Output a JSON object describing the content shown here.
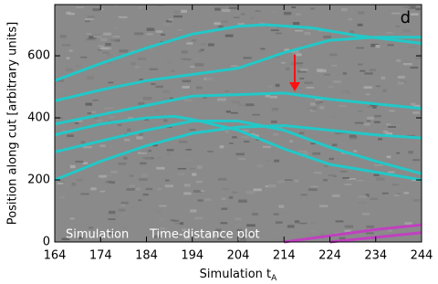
{
  "chart_data": {
    "type": "line",
    "title": "d",
    "annotations": [
      "Simulation",
      "Time-distance plot"
    ],
    "x_label": "Simulation t",
    "x_label_subscript": "A",
    "y_label": "Position along cut [arbitrary units]",
    "xlim": [
      164,
      244
    ],
    "xticks": [
      164,
      174,
      184,
      194,
      204,
      214,
      224,
      234,
      244
    ],
    "ylim": [
      0,
      765
    ],
    "yticks": [
      0,
      200,
      400,
      600
    ],
    "background": "#8a8a8a",
    "series": [
      {
        "color": "#22c8c8",
        "x": [
          164,
          174,
          184,
          194,
          204,
          210,
          220,
          230,
          244
        ],
        "values": [
          520,
          575,
          625,
          670,
          695,
          700,
          690,
          665,
          640
        ]
      },
      {
        "color": "#22c8c8",
        "x": [
          164,
          174,
          184,
          194,
          204,
          214,
          224,
          234,
          244
        ],
        "values": [
          455,
          490,
          520,
          540,
          560,
          610,
          650,
          660,
          660
        ]
      },
      {
        "color": "#22c8c8",
        "x": [
          164,
          174,
          184,
          194,
          204,
          214,
          224,
          234,
          244
        ],
        "values": [
          380,
          410,
          440,
          470,
          475,
          480,
          460,
          445,
          430
        ]
      },
      {
        "color": "#22c8c8",
        "x": [
          164,
          174,
          184,
          190,
          194,
          204,
          214,
          224,
          234,
          244
        ],
        "values": [
          345,
          380,
          400,
          405,
          395,
          360,
          300,
          250,
          225,
          200
        ]
      },
      {
        "color": "#22c8c8",
        "x": [
          164,
          174,
          184,
          194,
          204,
          214,
          224,
          234,
          244
        ],
        "values": [
          290,
          325,
          360,
          390,
          390,
          360,
          305,
          260,
          220
        ]
      },
      {
        "color": "#22c8c8",
        "x": [
          164,
          174,
          184,
          194,
          204,
          214,
          224,
          234,
          244
        ],
        "values": [
          200,
          260,
          310,
          350,
          370,
          375,
          360,
          345,
          335
        ]
      },
      {
        "color": "#c040c0",
        "x": [
          214,
          224,
          234,
          244
        ],
        "values": [
          0,
          20,
          40,
          55
        ]
      },
      {
        "color": "#c040c0",
        "x": [
          224,
          234,
          244
        ],
        "values": [
          0,
          15,
          30
        ]
      }
    ]
  }
}
